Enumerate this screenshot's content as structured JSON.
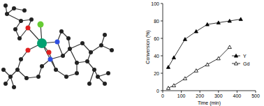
{
  "chart_data": {
    "type": "line",
    "x_label": "Time (min)",
    "y_label": "Conversion (%)",
    "series": [
      {
        "name": "Y",
        "color": "#000000",
        "marker": "triangle",
        "line_style": "solid",
        "x": [
          30,
          60,
          120,
          180,
          240,
          300,
          360,
          420
        ],
        "values": [
          27,
          38,
          59,
          68,
          76,
          78,
          80,
          82
        ]
      },
      {
        "name": "Gd",
        "color": "#000000",
        "marker": "triangle-open",
        "line_style": "solid",
        "x": [
          30,
          60,
          120,
          180,
          240,
          300,
          360
        ],
        "values": [
          3,
          6,
          14,
          23,
          30,
          37,
          50
        ]
      }
    ],
    "xlim": [
      0,
      500
    ],
    "xticks": [
      0,
      100,
      200,
      300,
      400,
      500
    ],
    "ylim": [
      0,
      100
    ],
    "yticks": [
      0,
      20,
      40,
      60,
      80,
      100
    ],
    "grid": false,
    "legend": "right"
  }
}
